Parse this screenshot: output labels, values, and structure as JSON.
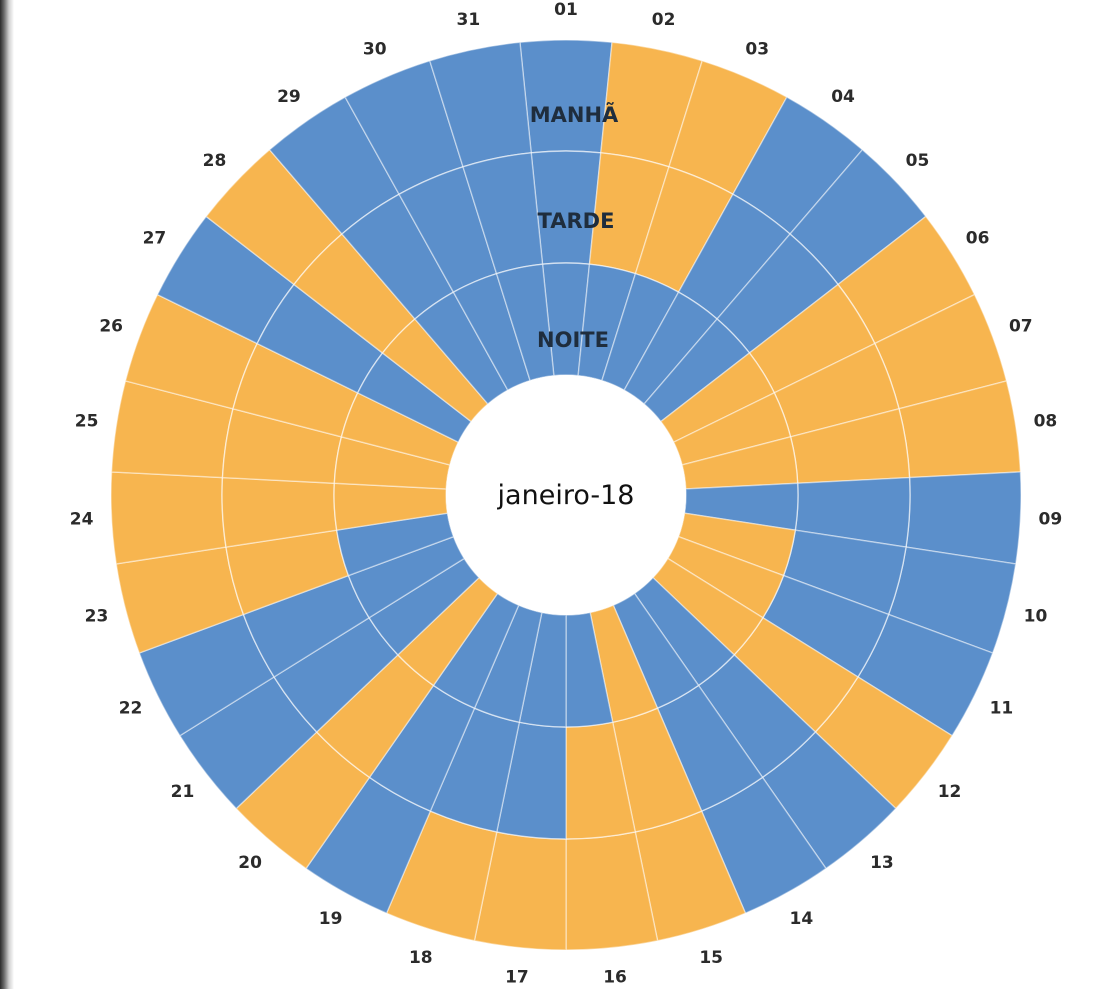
{
  "chart_data": {
    "type": "radial",
    "center_label": "janeiro-18",
    "rings": [
      "MANHÃ",
      "TARDE",
      "NOITE"
    ],
    "categories": [
      "01",
      "02",
      "03",
      "04",
      "05",
      "06",
      "07",
      "08",
      "09",
      "10",
      "11",
      "12",
      "13",
      "14",
      "15",
      "16",
      "17",
      "18",
      "19",
      "20",
      "21",
      "22",
      "23",
      "24",
      "25",
      "26",
      "27",
      "28",
      "29",
      "30",
      "31"
    ],
    "colors": {
      "blue": "#5b8fcb",
      "orange": "#f7b54f"
    },
    "cells": [
      [
        "blue",
        "blue",
        "blue"
      ],
      [
        "orange",
        "orange",
        "blue"
      ],
      [
        "orange",
        "orange",
        "blue"
      ],
      [
        "blue",
        "blue",
        "blue"
      ],
      [
        "blue",
        "blue",
        "blue"
      ],
      [
        "orange",
        "orange",
        "orange"
      ],
      [
        "orange",
        "orange",
        "orange"
      ],
      [
        "orange",
        "orange",
        "orange"
      ],
      [
        "blue",
        "blue",
        "blue"
      ],
      [
        "blue",
        "blue",
        "orange"
      ],
      [
        "blue",
        "blue",
        "orange"
      ],
      [
        "orange",
        "orange",
        "orange"
      ],
      [
        "blue",
        "blue",
        "blue"
      ],
      [
        "blue",
        "blue",
        "blue"
      ],
      [
        "orange",
        "orange",
        "orange"
      ],
      [
        "orange",
        "orange",
        "blue"
      ],
      [
        "orange",
        "blue",
        "blue"
      ],
      [
        "orange",
        "blue",
        "blue"
      ],
      [
        "blue",
        "blue",
        "blue"
      ],
      [
        "orange",
        "orange",
        "orange"
      ],
      [
        "blue",
        "blue",
        "blue"
      ],
      [
        "blue",
        "blue",
        "blue"
      ],
      [
        "orange",
        "orange",
        "blue"
      ],
      [
        "orange",
        "orange",
        "orange"
      ],
      [
        "orange",
        "orange",
        "orange"
      ],
      [
        "orange",
        "orange",
        "orange"
      ],
      [
        "blue",
        "blue",
        "blue"
      ],
      [
        "orange",
        "orange",
        "orange"
      ],
      [
        "blue",
        "blue",
        "blue"
      ],
      [
        "blue",
        "blue",
        "blue"
      ],
      [
        "blue",
        "blue",
        "blue"
      ]
    ]
  }
}
